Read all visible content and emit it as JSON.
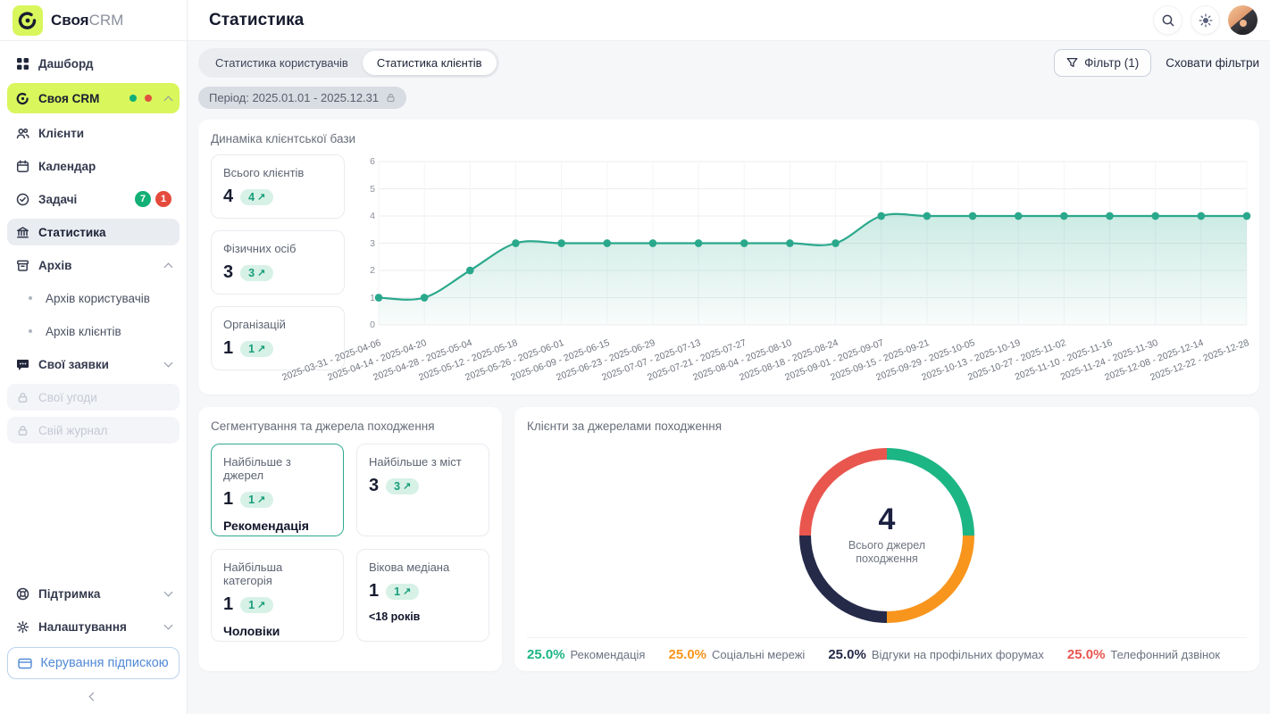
{
  "app": {
    "brand_bold": "Своя",
    "brand_light": "CRM"
  },
  "icons": {
    "trend_up": "↗"
  },
  "colors": {
    "accent_lime": "#d9f65c",
    "line_teal": "#2aa88c",
    "badge_bg": "#d7f1e7",
    "badge_text": "#169d79",
    "status_green": "#12b076",
    "status_red": "#e44b3d",
    "link_blue": "#5189d6",
    "dark_navy": "#181c30"
  },
  "sidebar": {
    "items": [
      {
        "label": "Дашборд"
      },
      {
        "label": "Своя CRM"
      },
      {
        "label": "Клієнти"
      },
      {
        "label": "Календар"
      },
      {
        "label": "Задачі",
        "badge_green": "7",
        "badge_red": "1"
      },
      {
        "label": "Статистика"
      },
      {
        "label": "Архів"
      },
      {
        "label": "Архів користувачів"
      },
      {
        "label": "Архів клієнтів"
      },
      {
        "label": "Свої заявки"
      },
      {
        "label": "Свої угоди"
      },
      {
        "label": "Свій журнал"
      },
      {
        "label": "Підтримка"
      },
      {
        "label": "Налаштування"
      }
    ],
    "subscription_button": "Керування підпискою"
  },
  "header": {
    "title": "Статистика"
  },
  "toolbar": {
    "tabs": [
      {
        "label": "Статистика користувачів"
      },
      {
        "label": "Статистика клієнтів"
      }
    ],
    "filter_button": "Фільтр (1)",
    "hide_filters": "Сховати фільтри",
    "period_chip": "Період: 2025.01.01 - 2025.12.31"
  },
  "dynamics": {
    "title": "Динаміка клієнтської бази",
    "cards": [
      {
        "title": "Всього клієнтів",
        "value": "4",
        "badge": "4"
      },
      {
        "title": "Фізичних осіб",
        "value": "3",
        "badge": "3"
      },
      {
        "title": "Організацій",
        "value": "1",
        "badge": "1"
      }
    ]
  },
  "segmentation": {
    "title": "Сегментування та джерела походження",
    "cards": [
      {
        "title": "Найбільше з джерел",
        "value": "1",
        "badge": "1",
        "caption": "Рекомендація"
      },
      {
        "title": "Найбільше з міст",
        "value": "3",
        "badge": "3",
        "caption": ""
      },
      {
        "title": "Найбільша категорія",
        "value": "1",
        "badge": "1",
        "caption": "Чоловіки"
      },
      {
        "title": "Вікова медіана",
        "value": "1",
        "badge": "1",
        "caption": "<18 років"
      }
    ]
  },
  "sources": {
    "title": "Клієнти за джерелами походження",
    "center_value": "4",
    "center_label": "Всього джерел походження"
  },
  "chart_data": [
    {
      "type": "line",
      "title": "Динаміка клієнтської бази",
      "x": [
        "2025-03-31 - 2025-04-06",
        "2025-04-14 - 2025-04-20",
        "2025-04-28 - 2025-05-04",
        "2025-05-12 - 2025-05-18",
        "2025-05-26 - 2025-06-01",
        "2025-06-09 - 2025-06-15",
        "2025-06-23 - 2025-06-29",
        "2025-07-07 - 2025-07-13",
        "2025-07-21 - 2025-07-27",
        "2025-08-04 - 2025-08-10",
        "2025-08-18 - 2025-08-24",
        "2025-09-01 - 2025-09-07",
        "2025-09-15 - 2025-09-21",
        "2025-09-29 - 2025-10-05",
        "2025-10-13 - 2025-10-19",
        "2025-10-27 - 2025-11-02",
        "2025-11-10 - 2025-11-16",
        "2025-11-24 - 2025-11-30",
        "2025-12-08 - 2025-12-14",
        "2025-12-22 - 2025-12-28"
      ],
      "values": [
        1,
        1,
        2,
        3,
        3,
        3,
        3,
        3,
        3,
        3,
        3,
        4,
        4,
        4,
        4,
        4,
        4,
        4,
        4,
        4
      ],
      "ylim": [
        0,
        6
      ],
      "y_ticks": [
        0,
        1,
        2,
        3,
        4,
        5,
        6
      ],
      "line_color": "#2aa88c",
      "grid": true,
      "area_fill": true,
      "legend_position": "none"
    },
    {
      "type": "pie",
      "donut": true,
      "title": "Клієнти за джерелами походження",
      "center_value": "4",
      "center_label": "Всього джерел походження",
      "segments": [
        {
          "label": "Рекомендація",
          "value": 1,
          "pct": "25.0%",
          "color": "#1cb584"
        },
        {
          "label": "Соціальні мережі",
          "value": 1,
          "pct": "25.0%",
          "color": "#f8951d"
        },
        {
          "label": "Відгуки на профільних форумах",
          "value": 1,
          "pct": "25.0%",
          "color": "#252a49"
        },
        {
          "label": "Телефонний дзвінок",
          "value": 1,
          "pct": "25.0%",
          "color": "#e8564e"
        }
      ],
      "legend_position": "bottom"
    }
  ]
}
